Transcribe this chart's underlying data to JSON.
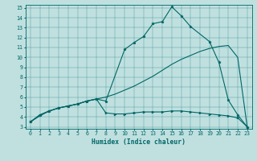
{
  "xlabel": "Humidex (Indice chaleur)",
  "bg_color": "#c0e0e0",
  "line_color": "#006666",
  "xlim": [
    -0.5,
    23.5
  ],
  "ylim": [
    2.8,
    15.3
  ],
  "xticks": [
    0,
    1,
    2,
    3,
    4,
    5,
    6,
    7,
    8,
    9,
    10,
    11,
    12,
    13,
    14,
    15,
    16,
    17,
    18,
    19,
    20,
    21,
    22,
    23
  ],
  "yticks": [
    3,
    4,
    5,
    6,
    7,
    8,
    9,
    10,
    11,
    12,
    13,
    14,
    15
  ],
  "line1_x": [
    0,
    1,
    2,
    3,
    4,
    5,
    6,
    7,
    8,
    10,
    11,
    12,
    13,
    14,
    15,
    16,
    17,
    19,
    20,
    21,
    22,
    23
  ],
  "line1_y": [
    3.5,
    4.2,
    4.6,
    4.9,
    5.1,
    5.3,
    5.6,
    5.8,
    5.6,
    10.8,
    11.5,
    12.1,
    13.4,
    13.6,
    15.1,
    14.2,
    13.1,
    11.6,
    9.5,
    5.7,
    4.2,
    3.0
  ],
  "line2_x": [
    0,
    1,
    2,
    3,
    4,
    5,
    6,
    7,
    8,
    9,
    10,
    11,
    12,
    13,
    14,
    15,
    16,
    17,
    18,
    19,
    20,
    21,
    22,
    23
  ],
  "line2_y": [
    3.5,
    4.1,
    4.6,
    4.9,
    5.1,
    5.3,
    5.6,
    5.8,
    6.0,
    6.3,
    6.7,
    7.1,
    7.6,
    8.1,
    8.7,
    9.3,
    9.8,
    10.2,
    10.6,
    10.9,
    11.1,
    11.2,
    10.0,
    3.0
  ],
  "line3_x": [
    0,
    1,
    2,
    3,
    4,
    5,
    6,
    7,
    8,
    9,
    10,
    11,
    12,
    13,
    14,
    15,
    16,
    17,
    18,
    19,
    20,
    21,
    22,
    23
  ],
  "line3_y": [
    3.5,
    4.2,
    4.6,
    4.9,
    5.1,
    5.3,
    5.6,
    5.8,
    4.4,
    4.3,
    4.3,
    4.4,
    4.5,
    4.5,
    4.5,
    4.6,
    4.6,
    4.5,
    4.4,
    4.3,
    4.2,
    4.1,
    3.9,
    3.0
  ],
  "marker1": "*",
  "marker3": ">"
}
